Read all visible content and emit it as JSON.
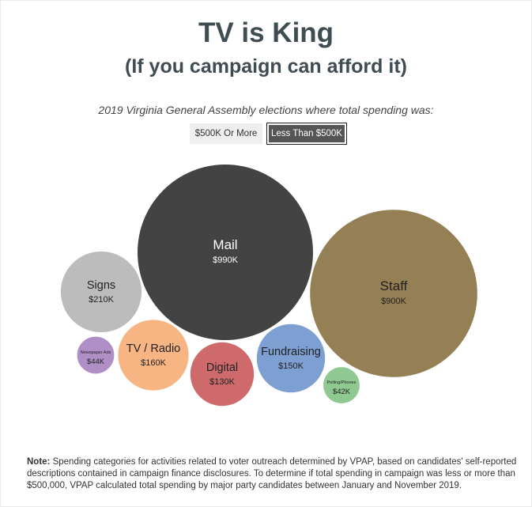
{
  "header": {
    "title": "TV is King",
    "subtitle": "(If you campaign can afford it)",
    "caption": "2019 Virginia General Assembly elections where total spending was:"
  },
  "toggles": {
    "option_high": "$500K Or More",
    "option_low": "Less Than $500K",
    "selected": "Less Than $500K"
  },
  "chart_data": {
    "type": "bubble",
    "unit": "$",
    "series": [
      {
        "name": "Mail",
        "value": 990000,
        "label": "$990K",
        "color": "#434343"
      },
      {
        "name": "Staff",
        "value": 900000,
        "label": "$900K",
        "color": "#957f54"
      },
      {
        "name": "Signs",
        "value": 210000,
        "label": "$210K",
        "color": "#bcbcbc"
      },
      {
        "name": "TV / Radio",
        "value": 160000,
        "label": "$160K",
        "color": "#f8b584"
      },
      {
        "name": "Fundraising",
        "value": 150000,
        "label": "$150K",
        "color": "#7d9fd1"
      },
      {
        "name": "Digital",
        "value": 130000,
        "label": "$130K",
        "color": "#cf6a6c"
      },
      {
        "name": "Newspaper Ads",
        "value": 44000,
        "label": "$44K",
        "color": "#b08fc7"
      },
      {
        "name": "Polling/Phones",
        "value": 42000,
        "label": "$42K",
        "color": "#90c891"
      }
    ]
  },
  "note": {
    "label": "Note:",
    "text": "Spending categories for activities related to voter outreach determined by VPAP, based on candidates' self-reported descriptions contained in campaign finance disclosures. To determine if total spending in campaign was less or more than $500,000, VPAP calculated total spending by major party candidates between January and November 2019."
  }
}
